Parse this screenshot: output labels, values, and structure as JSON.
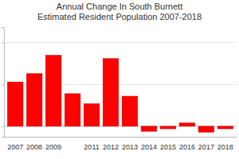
{
  "chart_data": {
    "type": "bar",
    "title": "Annual Change In South Burnett Estimated Resident Population 2007-2018",
    "categories": [
      "2007",
      "2008",
      "2009",
      null,
      "2011",
      "2012",
      "2013",
      "2014",
      "2015",
      "2016",
      "2017",
      "2018"
    ],
    "values": [
      212,
      252,
      340,
      156,
      108,
      324,
      144,
      -24,
      -12,
      16,
      -28,
      -12
    ],
    "color": "#ff0000",
    "ylim": [
      -50,
      475
    ],
    "yticks": [
      0,
      200,
      400
    ],
    "grid": true,
    "tick_labels": "x"
  }
}
